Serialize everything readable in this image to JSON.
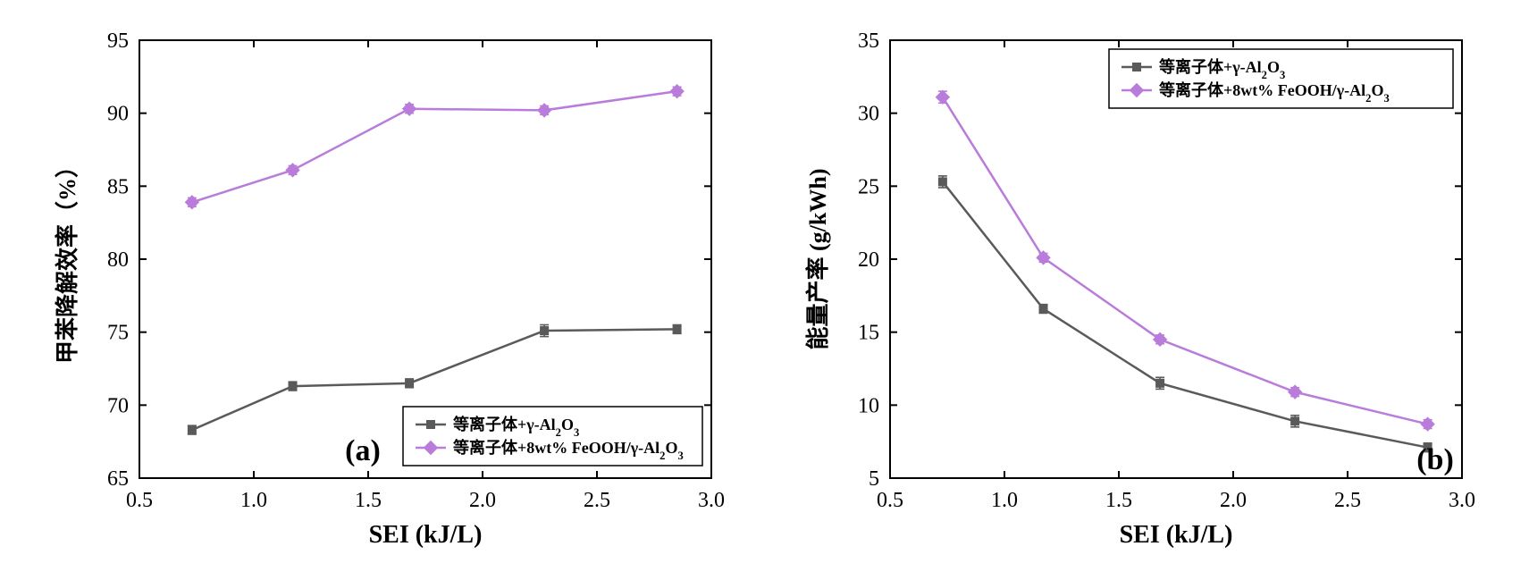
{
  "chart_a": {
    "type": "line-scatter",
    "panel_label": "(a)",
    "panel_label_fontsize": 34,
    "xlabel": "SEI (kJ/L)",
    "ylabel": "甲苯降解效率（%）",
    "xlabel_fontsize": 28,
    "ylabel_fontsize": 26,
    "tick_fontsize": 24,
    "xlim": [
      0.5,
      3.0
    ],
    "ylim": [
      65,
      95
    ],
    "xticks": [
      0.5,
      1.0,
      1.5,
      2.0,
      2.5,
      3.0
    ],
    "yticks": [
      65,
      70,
      75,
      80,
      85,
      90,
      95
    ],
    "background_color": "#ffffff",
    "axis_color": "#000000",
    "axis_linewidth": 2,
    "legend_position": "bottom-right-inset",
    "legend_box": true,
    "legend_box_color": "#000000",
    "legend_text_color": "#000000",
    "legend_fontsize": 18,
    "series": [
      {
        "name": "等离子体+γ-Al₂O₃",
        "display_label": "等离子体+γ-Al",
        "display_label_sub": "2",
        "display_label_sub2": "O",
        "display_label_sub3": "3",
        "color": "#5a5a5a",
        "marker": "square",
        "marker_size": 9,
        "marker_fill": "#5a5a5a",
        "line_width": 2.5,
        "x": [
          0.73,
          1.17,
          1.68,
          2.27,
          2.85
        ],
        "y": [
          68.3,
          71.3,
          71.5,
          75.1,
          75.2
        ],
        "yerr": [
          0.3,
          0.3,
          0.3,
          0.4,
          0.3
        ]
      },
      {
        "name": "等离子体+8wt% FeOOH/γ-Al₂O₃",
        "display_label": "等离子体+8wt% FeOOH/γ-Al",
        "display_label_sub": "2",
        "display_label_sub2": "O",
        "display_label_sub3": "3",
        "color": "#b97cda",
        "marker": "diamond",
        "marker_size": 10,
        "marker_fill": "#b97cda",
        "line_width": 2.5,
        "x": [
          0.73,
          1.17,
          1.68,
          2.27,
          2.85
        ],
        "y": [
          83.9,
          86.1,
          90.3,
          90.2,
          91.5
        ],
        "yerr": [
          0.3,
          0.3,
          0.3,
          0.3,
          0.3
        ]
      }
    ]
  },
  "chart_b": {
    "type": "line-scatter",
    "panel_label": "(b)",
    "panel_label_fontsize": 34,
    "xlabel": "SEI (kJ/L)",
    "ylabel": "能量产率 (g/kWh)",
    "xlabel_fontsize": 28,
    "ylabel_fontsize": 26,
    "tick_fontsize": 24,
    "xlim": [
      0.5,
      3.0
    ],
    "ylim": [
      5,
      35
    ],
    "xticks": [
      0.5,
      1.0,
      1.5,
      2.0,
      2.5,
      3.0
    ],
    "yticks": [
      5,
      10,
      15,
      20,
      25,
      30,
      35
    ],
    "background_color": "#ffffff",
    "axis_color": "#000000",
    "axis_linewidth": 2,
    "legend_position": "top-right-inset",
    "legend_box": true,
    "legend_box_color": "#000000",
    "legend_text_color": "#000000",
    "legend_fontsize": 18,
    "series": [
      {
        "name": "等离子体+γ-Al₂O₃",
        "display_label": "等离子体+γ-Al",
        "display_label_sub": "2",
        "display_label_sub2": "O",
        "display_label_sub3": "3",
        "color": "#5a5a5a",
        "marker": "square",
        "marker_size": 9,
        "marker_fill": "#5a5a5a",
        "line_width": 2.5,
        "x": [
          0.73,
          1.17,
          1.68,
          2.27,
          2.85
        ],
        "y": [
          25.3,
          16.6,
          11.5,
          8.9,
          7.1
        ],
        "yerr": [
          0.4,
          0.3,
          0.4,
          0.4,
          0.3
        ]
      },
      {
        "name": "等离子体+8wt% FeOOH/γ-Al₂O₃",
        "display_label": "等离子体+8wt% FeOOH/γ-Al",
        "display_label_sub": "2",
        "display_label_sub2": "O",
        "display_label_sub3": "3",
        "color": "#b97cda",
        "marker": "diamond",
        "marker_size": 10,
        "marker_fill": "#b97cda",
        "line_width": 2.5,
        "x": [
          0.73,
          1.17,
          1.68,
          2.27,
          2.85
        ],
        "y": [
          31.1,
          20.1,
          14.5,
          10.9,
          8.7
        ],
        "yerr": [
          0.4,
          0.3,
          0.3,
          0.3,
          0.3
        ]
      }
    ]
  }
}
